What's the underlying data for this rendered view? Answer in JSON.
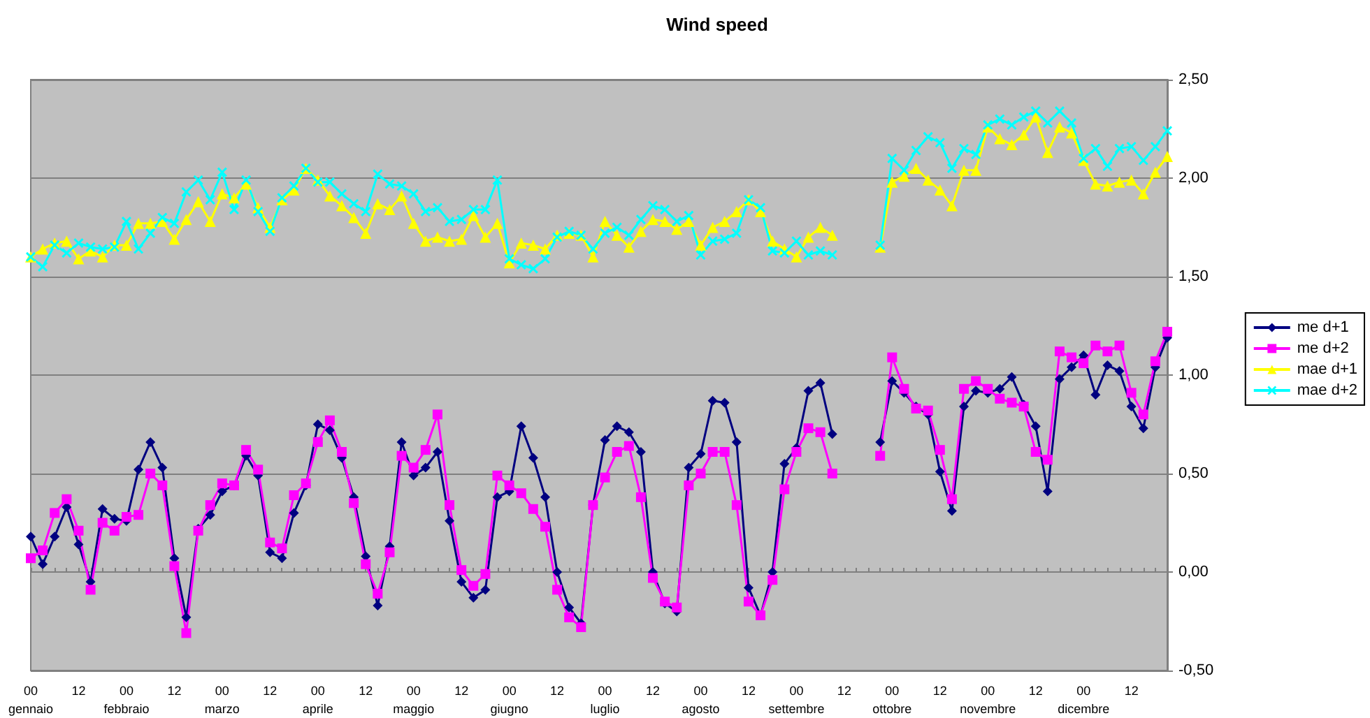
{
  "chart_data": {
    "type": "line",
    "title": "Wind speed",
    "categories": [
      "00\ngennaio",
      null,
      null,
      null,
      "12",
      null,
      null,
      null,
      "00\nfebbraio",
      null,
      null,
      null,
      "12",
      null,
      null,
      null,
      "00\nmarzo",
      null,
      null,
      null,
      "12",
      null,
      null,
      null,
      "00\naprile",
      null,
      null,
      null,
      "12",
      null,
      null,
      null,
      "00\nmaggio",
      null,
      null,
      null,
      "12",
      null,
      null,
      null,
      "00\ngiugno",
      null,
      null,
      null,
      "12",
      null,
      null,
      null,
      "00\nluglio",
      null,
      null,
      null,
      "12",
      null,
      null,
      null,
      "00\nagosto",
      null,
      null,
      null,
      "12",
      null,
      null,
      null,
      "00\nsettembre",
      null,
      null,
      null,
      "12",
      null,
      null,
      null,
      "00\nottobre",
      null,
      null,
      null,
      "12",
      null,
      null,
      null,
      "00\nnovembre",
      null,
      null,
      null,
      "12",
      null,
      null,
      null,
      "00\ndicembre",
      null,
      null,
      null,
      "12",
      null,
      null,
      null
    ],
    "series": [
      {
        "name": "me d+1",
        "color": "#000080",
        "marker": "diamond",
        "values": [
          0.18,
          0.04,
          0.18,
          0.33,
          0.14,
          -0.05,
          0.32,
          0.27,
          0.26,
          0.52,
          0.66,
          0.53,
          0.07,
          -0.23,
          0.22,
          0.29,
          0.41,
          0.44,
          0.59,
          0.49,
          0.1,
          0.07,
          0.3,
          0.44,
          0.75,
          0.72,
          0.58,
          0.38,
          0.08,
          -0.17,
          0.13,
          0.66,
          0.49,
          0.53,
          0.61,
          0.26,
          -0.05,
          -0.13,
          -0.09,
          0.38,
          0.41,
          0.74,
          0.58,
          0.38,
          0.0,
          -0.18,
          -0.26,
          0.34,
          0.67,
          0.74,
          0.71,
          0.61,
          0.0,
          -0.16,
          -0.2,
          0.53,
          0.6,
          0.87,
          0.86,
          0.66,
          -0.08,
          -0.22,
          0.0,
          0.55,
          0.63,
          0.92,
          0.96,
          0.7,
          null,
          null,
          null,
          0.66,
          0.97,
          0.91,
          0.84,
          0.8,
          0.51,
          0.31,
          0.84,
          0.92,
          0.91,
          0.93,
          0.99,
          0.85,
          0.74,
          0.41,
          0.98,
          1.04,
          1.1,
          0.9,
          1.05,
          1.02,
          0.84,
          0.73,
          1.04,
          1.19
        ]
      },
      {
        "name": "me d+2",
        "color": "#ff00ff",
        "marker": "square",
        "values": [
          0.07,
          0.11,
          0.3,
          0.37,
          0.21,
          -0.09,
          0.25,
          0.21,
          0.28,
          0.29,
          0.5,
          0.44,
          0.03,
          -0.31,
          0.21,
          0.34,
          0.45,
          0.44,
          0.62,
          0.52,
          0.15,
          0.12,
          0.39,
          0.45,
          0.66,
          0.77,
          0.61,
          0.35,
          0.04,
          -0.11,
          0.1,
          0.59,
          0.53,
          0.62,
          0.8,
          0.34,
          0.01,
          -0.07,
          -0.01,
          0.49,
          0.44,
          0.4,
          0.32,
          0.23,
          -0.09,
          -0.23,
          -0.28,
          0.34,
          0.48,
          0.61,
          0.64,
          0.38,
          -0.03,
          -0.15,
          -0.18,
          0.44,
          0.5,
          0.61,
          0.61,
          0.34,
          -0.15,
          -0.22,
          -0.04,
          0.42,
          0.61,
          0.73,
          0.71,
          0.5,
          null,
          null,
          null,
          0.59,
          1.09,
          0.93,
          0.83,
          0.82,
          0.62,
          0.37,
          0.93,
          0.97,
          0.93,
          0.88,
          0.86,
          0.84,
          0.61,
          0.57,
          1.12,
          1.09,
          1.06,
          1.15,
          1.12,
          1.15,
          0.91,
          0.8,
          1.07,
          1.22
        ]
      },
      {
        "name": "mae d+1",
        "color": "#ffff00",
        "marker": "triangle",
        "values": [
          1.6,
          1.64,
          1.67,
          1.68,
          1.59,
          1.63,
          1.6,
          1.66,
          1.66,
          1.77,
          1.77,
          1.78,
          1.69,
          1.79,
          1.88,
          1.78,
          1.92,
          1.9,
          1.97,
          1.85,
          1.75,
          1.89,
          1.94,
          2.05,
          1.99,
          1.91,
          1.86,
          1.8,
          1.72,
          1.87,
          1.84,
          1.91,
          1.77,
          1.68,
          1.7,
          1.68,
          1.69,
          1.81,
          1.7,
          1.77,
          1.57,
          1.67,
          1.66,
          1.64,
          1.71,
          1.72,
          1.71,
          1.6,
          1.78,
          1.71,
          1.65,
          1.73,
          1.79,
          1.78,
          1.74,
          1.78,
          1.66,
          1.75,
          1.78,
          1.83,
          1.89,
          1.83,
          1.68,
          1.64,
          1.6,
          1.7,
          1.75,
          1.71,
          null,
          null,
          null,
          1.65,
          1.98,
          2.01,
          2.05,
          1.99,
          1.94,
          1.86,
          2.04,
          2.04,
          2.26,
          2.2,
          2.17,
          2.22,
          2.31,
          2.13,
          2.26,
          2.23,
          2.09,
          1.97,
          1.96,
          1.98,
          1.99,
          1.92,
          2.03,
          2.11
        ]
      },
      {
        "name": "mae d+2",
        "color": "#00ffff",
        "marker": "cross",
        "values": [
          1.6,
          1.55,
          1.66,
          1.62,
          1.67,
          1.65,
          1.64,
          1.65,
          1.78,
          1.64,
          1.72,
          1.8,
          1.77,
          1.93,
          1.99,
          1.89,
          2.03,
          1.84,
          1.99,
          1.83,
          1.73,
          1.9,
          1.96,
          2.05,
          1.98,
          1.98,
          1.92,
          1.87,
          1.83,
          2.02,
          1.97,
          1.96,
          1.92,
          1.83,
          1.85,
          1.78,
          1.79,
          1.84,
          1.84,
          1.99,
          1.59,
          1.56,
          1.54,
          1.59,
          1.7,
          1.73,
          1.71,
          1.64,
          1.72,
          1.75,
          1.71,
          1.79,
          1.86,
          1.84,
          1.78,
          1.81,
          1.61,
          1.68,
          1.69,
          1.72,
          1.89,
          1.85,
          1.63,
          1.62,
          1.68,
          1.61,
          1.63,
          1.61,
          null,
          null,
          null,
          1.66,
          2.1,
          2.04,
          2.14,
          2.21,
          2.18,
          2.05,
          2.15,
          2.12,
          2.27,
          2.3,
          2.27,
          2.31,
          2.34,
          2.28,
          2.34,
          2.28,
          2.1,
          2.15,
          2.06,
          2.15,
          2.16,
          2.09,
          2.16,
          2.24
        ]
      }
    ],
    "ylim": [
      -0.5,
      2.5
    ],
    "yticks": [
      {
        "value": -0.5,
        "label": "-0,50"
      },
      {
        "value": 0,
        "label": "0,00"
      },
      {
        "value": 0.5,
        "label": "0,50"
      },
      {
        "value": 1,
        "label": "1,00"
      },
      {
        "value": 1.5,
        "label": "1,50"
      },
      {
        "value": 2,
        "label": "2,00"
      },
      {
        "value": 2.5,
        "label": "2,50"
      }
    ],
    "grid": "y",
    "legend": "right"
  }
}
